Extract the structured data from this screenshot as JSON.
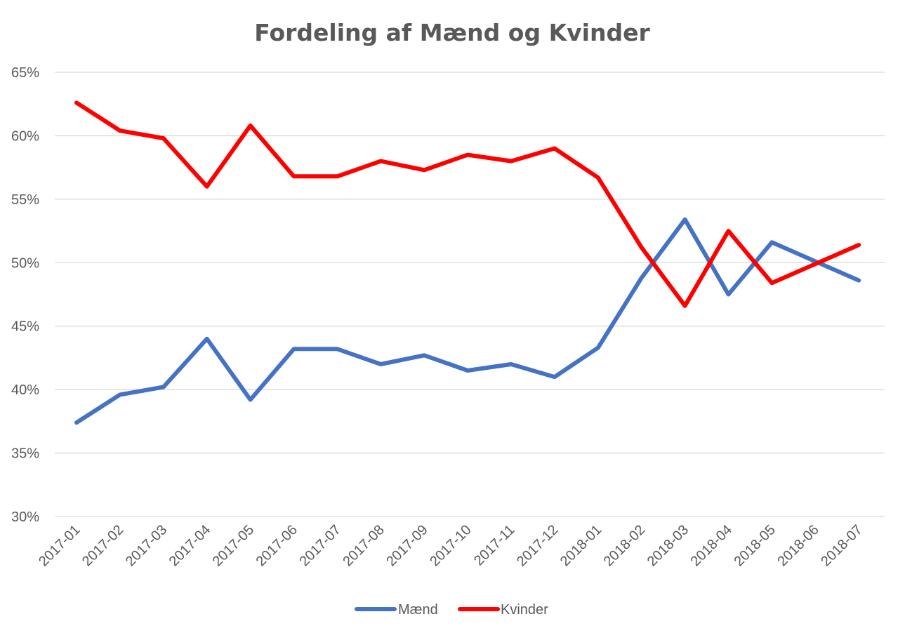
{
  "chart_data": {
    "type": "line",
    "title": "Fordeling af Mænd og Kvinder",
    "xlabel": "",
    "ylabel": "",
    "categories": [
      "2017-01",
      "2017-02",
      "2017-03",
      "2017-04",
      "2017-05",
      "2017-06",
      "2017-07",
      "2017-08",
      "2017-09",
      "2017-10",
      "2017-11",
      "2017-12",
      "2018-01",
      "2018-02",
      "2018-03",
      "2018-04",
      "2018-05",
      "2018-06",
      "2018-07"
    ],
    "ylim": [
      0.3,
      0.65
    ],
    "yticks": [
      0.3,
      0.35,
      0.4,
      0.45,
      0.5,
      0.55,
      0.6,
      0.65
    ],
    "ytick_labels": [
      "30%",
      "35%",
      "40%",
      "45%",
      "50%",
      "55%",
      "60%",
      "65%"
    ],
    "grid": true,
    "legend_position": "bottom",
    "series": [
      {
        "name": "Mænd",
        "color": "#4472c4",
        "values": [
          0.374,
          0.396,
          0.402,
          0.44,
          0.392,
          0.432,
          0.432,
          0.42,
          0.427,
          0.415,
          0.42,
          0.41,
          0.433,
          0.488,
          0.534,
          0.475,
          0.516,
          0.501,
          0.486
        ]
      },
      {
        "name": "Kvinder",
        "color": "#ff0000",
        "values": [
          0.626,
          0.604,
          0.598,
          0.56,
          0.608,
          0.568,
          0.568,
          0.58,
          0.573,
          0.585,
          0.58,
          0.59,
          0.567,
          0.512,
          0.466,
          0.525,
          0.484,
          0.499,
          0.514
        ]
      }
    ]
  }
}
